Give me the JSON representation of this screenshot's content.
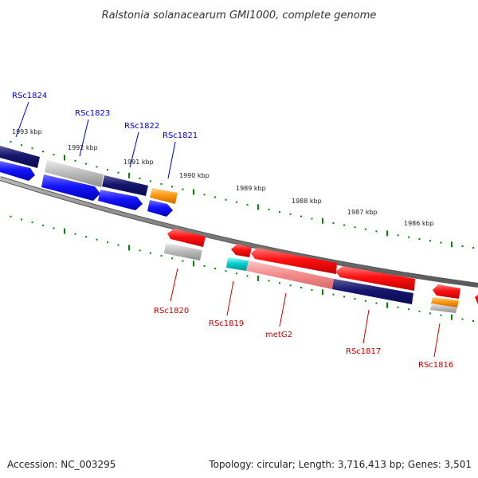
{
  "title": "Ralstonia solanacearum GMI1000, complete genome",
  "accession": "Accession: NC_003295",
  "summary": "Topology: circular; Length: 3,716,413 bp; Genes: 3,501",
  "colors": {
    "forward_label": "#0000cc",
    "reverse_label": "#cc0000",
    "tick": "#008800",
    "backbone": "#808080"
  },
  "kbp_labels": [
    "1993 kbp",
    "1992 kbp",
    "1991 kbp",
    "1990 kbp",
    "1989 kbp",
    "1988 kbp",
    "1987 kbp",
    "1986 kbp"
  ],
  "forward_genes": [
    "RSc1824",
    "RSc1823",
    "RSc1822",
    "RSc1821"
  ],
  "reverse_genes": [
    "RSc1820",
    "RSc1819",
    "metG2",
    "RSc1817",
    "RSc1816"
  ]
}
